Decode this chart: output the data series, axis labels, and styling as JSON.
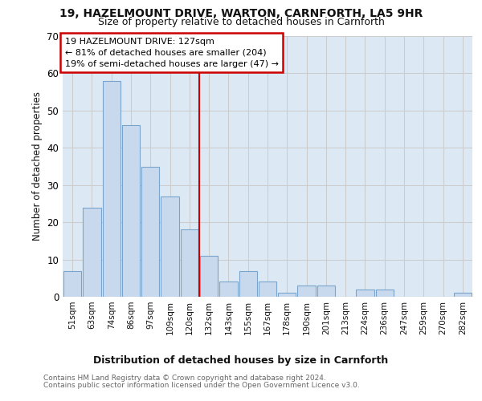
{
  "title1": "19, HAZELMOUNT DRIVE, WARTON, CARNFORTH, LA5 9HR",
  "title2": "Size of property relative to detached houses in Carnforth",
  "xlabel": "Distribution of detached houses by size in Carnforth",
  "ylabel": "Number of detached properties",
  "categories": [
    "51sqm",
    "63sqm",
    "74sqm",
    "86sqm",
    "97sqm",
    "109sqm",
    "120sqm",
    "132sqm",
    "143sqm",
    "155sqm",
    "167sqm",
    "178sqm",
    "190sqm",
    "201sqm",
    "213sqm",
    "224sqm",
    "236sqm",
    "247sqm",
    "259sqm",
    "270sqm",
    "282sqm"
  ],
  "values": [
    7,
    24,
    58,
    46,
    35,
    27,
    18,
    11,
    4,
    7,
    4,
    1,
    3,
    3,
    0,
    2,
    2,
    0,
    0,
    0,
    1
  ],
  "bar_color": "#c8d9ee",
  "bar_edge_color": "#7ba4cc",
  "vline_color": "#cc0000",
  "vline_x": 6.5,
  "annotation_line1": "19 HAZELMOUNT DRIVE: 127sqm",
  "annotation_line2": "← 81% of detached houses are smaller (204)",
  "annotation_line3": "19% of semi-detached houses are larger (47) →",
  "annotation_box_facecolor": "#ffffff",
  "annotation_box_edgecolor": "#cc0000",
  "ylim": [
    0,
    70
  ],
  "yticks": [
    0,
    10,
    20,
    30,
    40,
    50,
    60,
    70
  ],
  "grid_color": "#cccccc",
  "bg_color": "#dce9f5",
  "fig_bg": "#ffffff",
  "footer1": "Contains HM Land Registry data © Crown copyright and database right 2024.",
  "footer2": "Contains public sector information licensed under the Open Government Licence v3.0."
}
